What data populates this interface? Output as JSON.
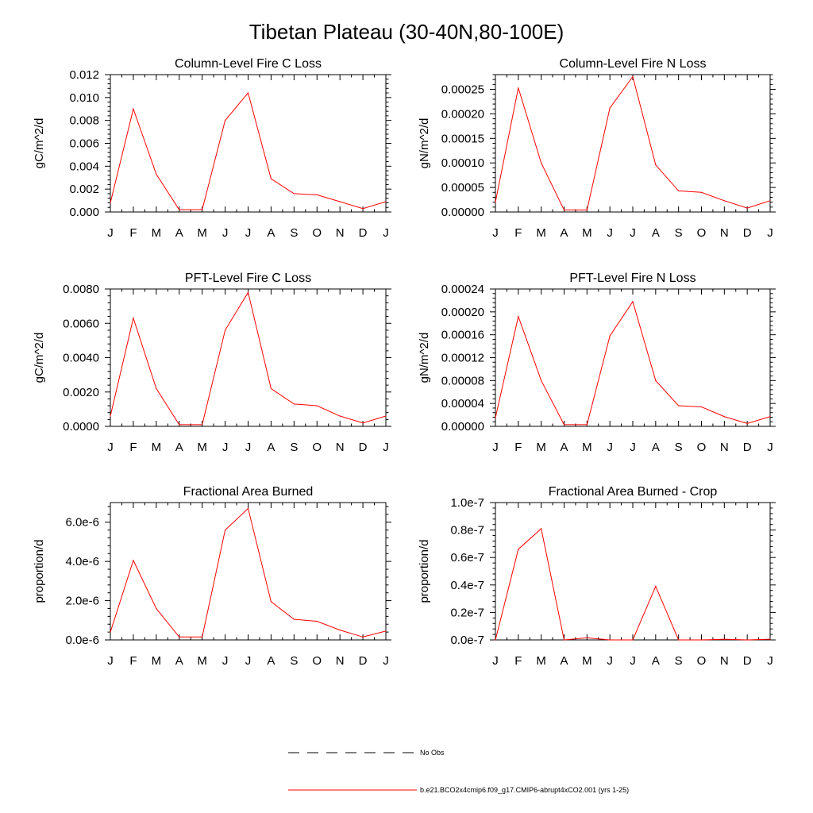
{
  "figure_title": "Tibetan Plateau (30-40N,80-100E)",
  "month_labels": [
    "J",
    "F",
    "M",
    "A",
    "M",
    "J",
    "J",
    "A",
    "S",
    "O",
    "N",
    "D",
    "J"
  ],
  "legend": {
    "obs_label": "No Obs",
    "model_label": "b.e21.BCO2x4cmip6.f09_g17.CMIP6-abrupt4xCO2.001 (yrs 1-25)"
  },
  "colors": {
    "model_line": "#ff0000",
    "obs_line": "#000000",
    "axes": "#000000"
  },
  "chart_data": [
    {
      "type": "line",
      "title": "Column-Level Fire C Loss",
      "ylabel": "gC/m^2/d",
      "ylim": [
        0,
        0.012
      ],
      "yticks": [
        0,
        0.002,
        0.004,
        0.006,
        0.008,
        0.01,
        0.012
      ],
      "ytick_labels": [
        "0.000",
        "0.002",
        "0.004",
        "0.006",
        "0.008",
        "0.010",
        "0.012"
      ],
      "x": [
        0,
        1,
        2,
        3,
        4,
        5,
        6,
        7,
        8,
        9,
        10,
        11,
        12
      ],
      "series": [
        {
          "name": "b.e21.BCO2x4cmip6.f09_g17.CMIP6-abrupt4xCO2.001 (yrs 1-25)",
          "values": [
            0.0008,
            0.009,
            0.0033,
            0.0002,
            0.0002,
            0.008,
            0.0104,
            0.0029,
            0.0016,
            0.0015,
            0.0009,
            0.0003,
            0.0009
          ]
        }
      ]
    },
    {
      "type": "line",
      "title": "Column-Level Fire N Loss",
      "ylabel": "gN/m^2/d",
      "ylim": [
        0,
        0.00028
      ],
      "yticks": [
        0,
        5e-05,
        0.0001,
        0.00015,
        0.0002,
        0.00025
      ],
      "ytick_labels": [
        "0.00000",
        "0.00005",
        "0.00010",
        "0.00015",
        "0.00020",
        "0.00025"
      ],
      "x": [
        0,
        1,
        2,
        3,
        4,
        5,
        6,
        7,
        8,
        9,
        10,
        11,
        12
      ],
      "series": [
        {
          "name": "b.e21.BCO2x4cmip6.f09_g17.CMIP6-abrupt4xCO2.001 (yrs 1-25)",
          "values": [
            2e-05,
            0.000253,
            0.0001,
            4e-06,
            4e-06,
            0.000212,
            0.000276,
            9.6e-05,
            4.3e-05,
            4e-05,
            2.3e-05,
            8e-06,
            2.3e-05
          ]
        }
      ]
    },
    {
      "type": "line",
      "title": "PFT-Level Fire C Loss",
      "ylabel": "gC/m^2/d",
      "ylim": [
        0,
        0.008
      ],
      "yticks": [
        0,
        0.002,
        0.004,
        0.006,
        0.008
      ],
      "ytick_labels": [
        "0.0000",
        "0.0020",
        "0.0040",
        "0.0060",
        "0.0080"
      ],
      "x": [
        0,
        1,
        2,
        3,
        4,
        5,
        6,
        7,
        8,
        9,
        10,
        11,
        12
      ],
      "series": [
        {
          "name": "b.e21.BCO2x4cmip6.f09_g17.CMIP6-abrupt4xCO2.001 (yrs 1-25)",
          "values": [
            0.0006,
            0.0063,
            0.0022,
            0.0001,
            0.0001,
            0.0056,
            0.0078,
            0.0022,
            0.0013,
            0.0012,
            0.0006,
            0.0002,
            0.0006
          ]
        }
      ]
    },
    {
      "type": "line",
      "title": "PFT-Level Fire N Loss",
      "ylabel": "gN/m^2/d",
      "ylim": [
        0,
        0.00024
      ],
      "yticks": [
        0,
        4e-05,
        8e-05,
        0.00012,
        0.00016,
        0.0002,
        0.00024
      ],
      "ytick_labels": [
        "0.00000",
        "0.00004",
        "0.00008",
        "0.00012",
        "0.00016",
        "0.00020",
        "0.00024"
      ],
      "x": [
        0,
        1,
        2,
        3,
        4,
        5,
        6,
        7,
        8,
        9,
        10,
        11,
        12
      ],
      "series": [
        {
          "name": "b.e21.BCO2x4cmip6.f09_g17.CMIP6-abrupt4xCO2.001 (yrs 1-25)",
          "values": [
            1.5e-05,
            0.000192,
            8e-05,
            3e-06,
            3e-06,
            0.000158,
            0.000218,
            8e-05,
            3.6e-05,
            3.4e-05,
            1.7e-05,
            5e-06,
            1.7e-05
          ]
        }
      ]
    },
    {
      "type": "line",
      "title": "Fractional Area Burned",
      "ylabel": "proportion/d",
      "ylim": [
        0,
        7e-06
      ],
      "yticks": [
        0,
        2e-06,
        4e-06,
        6e-06
      ],
      "ytick_labels": [
        "0.0e-6",
        "2.0e-6",
        "4.0e-6",
        "6.0e-6"
      ],
      "x": [
        0,
        1,
        2,
        3,
        4,
        5,
        6,
        7,
        8,
        9,
        10,
        11,
        12
      ],
      "series": [
        {
          "name": "b.e21.BCO2x4cmip6.f09_g17.CMIP6-abrupt4xCO2.001 (yrs 1-25)",
          "values": [
            4e-07,
            4.05e-06,
            1.6e-06,
            1.5e-07,
            1.5e-07,
            5.6e-06,
            6.7e-06,
            1.95e-06,
            1.05e-06,
            9.5e-07,
            5e-07,
            1.5e-07,
            4.5e-07
          ]
        }
      ]
    },
    {
      "type": "line",
      "title": "Fractional Area Burned - Crop",
      "ylabel": "proportion/d",
      "ylim": [
        0,
        1e-07
      ],
      "yticks": [
        0,
        2e-08,
        4e-08,
        6e-08,
        8e-08,
        1e-07
      ],
      "ytick_labels": [
        "0.0e-7",
        "0.2e-7",
        "0.4e-7",
        "0.6e-7",
        "0.8e-7",
        "1.0e-7"
      ],
      "x": [
        0,
        1,
        2,
        3,
        4,
        5,
        6,
        7,
        8,
        9,
        10,
        11,
        12
      ],
      "series": [
        {
          "name": "b.e21.BCO2x4cmip6.f09_g17.CMIP6-abrupt4xCO2.001 (yrs 1-25)",
          "values": [
            0.0,
            6.6e-08,
            8.1e-08,
            0.0,
            1.5e-09,
            0.0,
            0.0,
            3.9e-08,
            0.0,
            0.0,
            5e-10,
            0.0,
            5e-10
          ]
        }
      ]
    }
  ]
}
